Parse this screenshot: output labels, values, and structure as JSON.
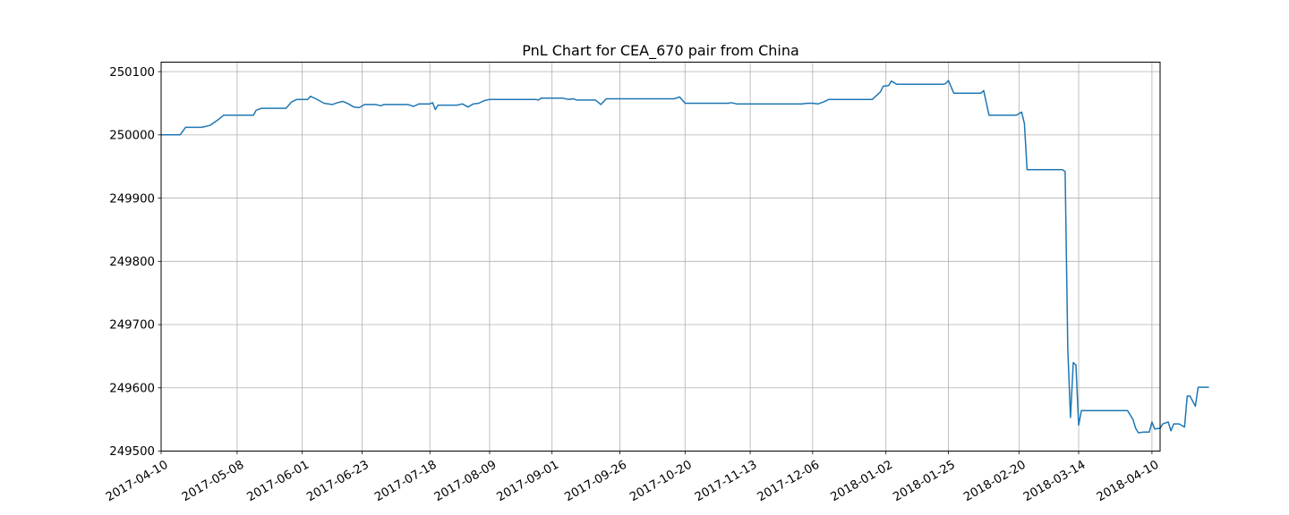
{
  "chart_data": {
    "type": "line",
    "title": "PnL Chart for CEA_670 pair from China",
    "xlabel": "",
    "ylabel": "",
    "grid": true,
    "line_color": "#1f77b4",
    "xlim": [
      "2017-04-10",
      "2018-04-13"
    ],
    "ylim": [
      249500,
      250115
    ],
    "x_ticks": [
      "2017-04-10",
      "2017-05-08",
      "2017-06-01",
      "2017-06-23",
      "2017-07-18",
      "2017-08-09",
      "2017-09-01",
      "2017-09-26",
      "2017-10-20",
      "2017-11-13",
      "2017-12-06",
      "2018-01-02",
      "2018-01-25",
      "2018-02-20",
      "2018-03-14",
      "2018-04-10"
    ],
    "y_ticks": [
      "249500",
      "249600",
      "249700",
      "249800",
      "249900",
      "250000",
      "250100"
    ],
    "series": [
      {
        "points": [
          [
            "2017-04-10",
            250000
          ],
          [
            "2017-04-17",
            250000
          ],
          [
            "2017-04-19",
            250012
          ],
          [
            "2017-04-25",
            250012
          ],
          [
            "2017-04-28",
            250015
          ],
          [
            "2017-05-01",
            250024
          ],
          [
            "2017-05-03",
            250031
          ],
          [
            "2017-05-10",
            250031
          ],
          [
            "2017-05-14",
            250031
          ],
          [
            "2017-05-15",
            250039
          ],
          [
            "2017-05-17",
            250042
          ],
          [
            "2017-05-26",
            250042
          ],
          [
            "2017-05-28",
            250052
          ],
          [
            "2017-05-30",
            250056
          ],
          [
            "2017-06-01",
            250056
          ],
          [
            "2017-06-03",
            250056
          ],
          [
            "2017-06-04",
            250061
          ],
          [
            "2017-06-06",
            250057
          ],
          [
            "2017-06-09",
            250050
          ],
          [
            "2017-06-12",
            250048
          ],
          [
            "2017-06-14",
            250051
          ],
          [
            "2017-06-16",
            250053
          ],
          [
            "2017-06-18",
            250049
          ],
          [
            "2017-06-20",
            250044
          ],
          [
            "2017-06-22",
            250043
          ],
          [
            "2017-06-24",
            250048
          ],
          [
            "2017-06-28",
            250048
          ],
          [
            "2017-06-30",
            250046
          ],
          [
            "2017-07-01",
            250048
          ],
          [
            "2017-07-06",
            250048
          ],
          [
            "2017-07-10",
            250048
          ],
          [
            "2017-07-12",
            250045
          ],
          [
            "2017-07-14",
            250049
          ],
          [
            "2017-07-18",
            250049
          ],
          [
            "2017-07-19",
            250051
          ],
          [
            "2017-07-20",
            250040
          ],
          [
            "2017-07-21",
            250047
          ],
          [
            "2017-07-28",
            250047
          ],
          [
            "2017-07-30",
            250049
          ],
          [
            "2017-08-01",
            250044
          ],
          [
            "2017-08-03",
            250049
          ],
          [
            "2017-08-05",
            250050
          ],
          [
            "2017-08-07",
            250054
          ],
          [
            "2017-08-09",
            250056
          ],
          [
            "2017-08-12",
            250056
          ],
          [
            "2017-08-20",
            250056
          ],
          [
            "2017-08-26",
            250056
          ],
          [
            "2017-08-27",
            250055
          ],
          [
            "2017-08-28",
            250058
          ],
          [
            "2017-09-01",
            250058
          ],
          [
            "2017-09-05",
            250058
          ],
          [
            "2017-09-07",
            250056
          ],
          [
            "2017-09-09",
            250057
          ],
          [
            "2017-09-10",
            250055
          ],
          [
            "2017-09-14",
            250055
          ],
          [
            "2017-09-17",
            250055
          ],
          [
            "2017-09-19",
            250048
          ],
          [
            "2017-09-21",
            250057
          ],
          [
            "2017-09-26",
            250057
          ],
          [
            "2017-10-03",
            250057
          ],
          [
            "2017-10-08",
            250057
          ],
          [
            "2017-10-13",
            250057
          ],
          [
            "2017-10-16",
            250057
          ],
          [
            "2017-10-18",
            250060
          ],
          [
            "2017-10-20",
            250050
          ],
          [
            "2017-10-27",
            250050
          ],
          [
            "2017-11-03",
            250050
          ],
          [
            "2017-11-05",
            250050
          ],
          [
            "2017-11-06",
            250051
          ],
          [
            "2017-11-08",
            250049
          ],
          [
            "2017-11-13",
            250049
          ],
          [
            "2017-11-20",
            250049
          ],
          [
            "2017-11-27",
            250049
          ],
          [
            "2017-12-02",
            250049
          ],
          [
            "2017-12-04",
            250050
          ],
          [
            "2017-12-06",
            250050
          ],
          [
            "2017-12-08",
            250049
          ],
          [
            "2017-12-10",
            250052
          ],
          [
            "2017-12-12",
            250056
          ],
          [
            "2017-12-20",
            250056
          ],
          [
            "2017-12-25",
            250056
          ],
          [
            "2017-12-28",
            250056
          ],
          [
            "2017-12-31",
            250068
          ],
          [
            "2018-01-01",
            250077
          ],
          [
            "2018-01-03",
            250078
          ],
          [
            "2018-01-04",
            250085
          ],
          [
            "2018-01-06",
            250080
          ],
          [
            "2018-01-11",
            250080
          ],
          [
            "2018-01-15",
            250080
          ],
          [
            "2018-01-19",
            250080
          ],
          [
            "2018-01-23",
            250080
          ],
          [
            "2018-01-24",
            250081
          ],
          [
            "2018-01-25",
            250086
          ],
          [
            "2018-01-27",
            250066
          ],
          [
            "2018-01-30",
            250066
          ],
          [
            "2018-02-03",
            250066
          ],
          [
            "2018-02-06",
            250066
          ],
          [
            "2018-02-07",
            250070
          ],
          [
            "2018-02-09",
            250031
          ],
          [
            "2018-02-14",
            250031
          ],
          [
            "2018-02-17",
            250031
          ],
          [
            "2018-02-18",
            250031
          ],
          [
            "2018-02-19",
            250031
          ],
          [
            "2018-02-21",
            250036
          ],
          [
            "2018-02-22",
            250018
          ],
          [
            "2018-02-23",
            249945
          ],
          [
            "2018-02-25",
            249945
          ],
          [
            "2018-02-28",
            249945
          ],
          [
            "2018-03-03",
            249945
          ],
          [
            "2018-03-08",
            249945
          ],
          [
            "2018-03-09",
            249942
          ],
          [
            "2018-03-10",
            249660
          ],
          [
            "2018-03-11",
            249553
          ],
          [
            "2018-03-12",
            249640
          ],
          [
            "2018-03-13",
            249636
          ],
          [
            "2018-03-14",
            249541
          ],
          [
            "2018-03-15",
            249564
          ],
          [
            "2018-03-21",
            249564
          ],
          [
            "2018-03-27",
            249564
          ],
          [
            "2018-04-01",
            249564
          ],
          [
            "2018-04-03",
            249550
          ],
          [
            "2018-04-04",
            249536
          ],
          [
            "2018-04-05",
            249529
          ],
          [
            "2018-04-07",
            249530
          ],
          [
            "2018-04-09",
            249530
          ],
          [
            "2018-04-10",
            249546
          ],
          [
            "2018-04-11",
            249535
          ],
          [
            "2018-04-13",
            249536
          ],
          [
            "2018-04-14",
            249543
          ],
          [
            "2018-04-16",
            249546
          ],
          [
            "2018-04-17",
            249532
          ],
          [
            "2018-04-18",
            249543
          ],
          [
            "2018-04-20",
            249543
          ],
          [
            "2018-04-22",
            249538
          ],
          [
            "2018-04-23",
            249587
          ],
          [
            "2018-04-24",
            249587
          ],
          [
            "2018-04-26",
            249571
          ],
          [
            "2018-04-27",
            249601
          ],
          [
            "2018-04-29",
            249601
          ],
          [
            "2018-05-01",
            249601
          ]
        ]
      }
    ]
  }
}
